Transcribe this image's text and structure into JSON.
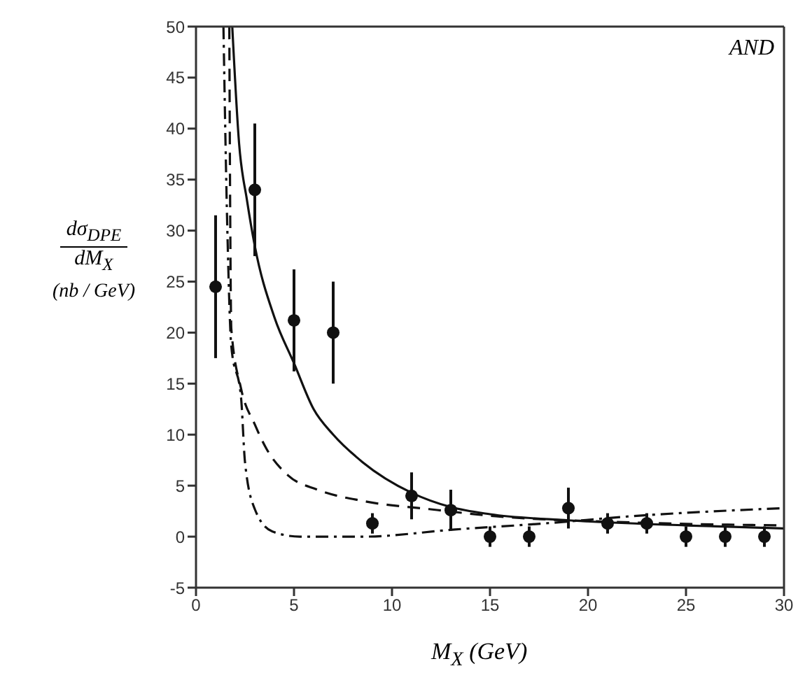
{
  "chart_data": {
    "type": "scatter",
    "xlabel": "M$_{X}$ (GeV)",
    "ylabel": "dσ$_{DPE}$ dM$_{X}$ (nb / GeV)",
    "annotations": [
      "AND"
    ],
    "xlim": [
      0,
      30
    ],
    "ylim": [
      -5,
      50
    ],
    "xticks": [
      0,
      5,
      10,
      15,
      20,
      25,
      30
    ],
    "yticks": [
      -5,
      0,
      5,
      10,
      15,
      20,
      25,
      30,
      35,
      40,
      45,
      50
    ],
    "grid": false,
    "series": [
      {
        "color": "#111111",
        "marker": "circle",
        "x": [
          1,
          3,
          5,
          7,
          9,
          11,
          13,
          15,
          17,
          19,
          21,
          23,
          25,
          27,
          29
        ],
        "values": [
          24.5,
          34,
          21.2,
          20,
          1.3,
          4,
          2.6,
          0,
          0,
          2.8,
          1.3,
          1.3,
          0,
          0,
          0
        ],
        "errors": [
          7,
          6.5,
          5,
          5,
          1,
          2.3,
          2,
          1,
          1,
          2,
          1,
          1,
          1,
          1,
          1
        ]
      },
      {
        "type": "line",
        "color": "#111111",
        "line_style": "solid",
        "x": [
          1.85,
          2.2,
          2.6,
          3,
          4,
          5,
          6,
          7,
          8.5,
          11,
          13,
          15,
          19,
          25,
          30
        ],
        "values": [
          50,
          38.5,
          33,
          28.5,
          21.5,
          17,
          12.5,
          10,
          7.3,
          4.3,
          2.9,
          2.2,
          1.6,
          1.1,
          0.8
        ]
      },
      {
        "type": "line",
        "color": "#111111",
        "line_style": "dashed",
        "x": [
          1.7,
          1.75,
          1.8,
          2.3,
          3,
          3.6,
          4.7,
          6.2,
          8.5,
          11.9,
          15.3,
          22.2,
          30
        ],
        "values": [
          50,
          30,
          20.4,
          14.5,
          11,
          8.6,
          6,
          4.6,
          3.5,
          2.7,
          2,
          1.4,
          1.1
        ]
      },
      {
        "type": "line",
        "color": "#111111",
        "line_style": "dashdot",
        "x": [
          1.4,
          1.6,
          1.8,
          2.3,
          2.5,
          3,
          3.9,
          5.3,
          8.5,
          13.2,
          17.8,
          22.2,
          30
        ],
        "values": [
          50,
          30,
          18.7,
          13.6,
          7.3,
          2.7,
          0.5,
          0,
          0,
          0.7,
          1.3,
          2,
          2.8
        ]
      }
    ]
  }
}
